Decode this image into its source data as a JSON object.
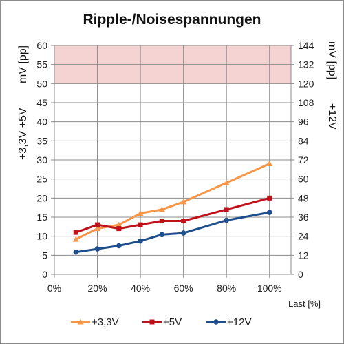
{
  "chart_data": {
    "type": "line",
    "title": "Ripple-/Noisespannungen",
    "x": [
      "10%",
      "20%",
      "30%",
      "40%",
      "50%",
      "60%",
      "80%",
      "100%"
    ],
    "x_values": [
      10,
      20,
      30,
      40,
      50,
      60,
      80,
      100
    ],
    "x_ticks": [
      "0%",
      "20%",
      "40%",
      "60%",
      "80%",
      "100%"
    ],
    "xlim": [
      0,
      110
    ],
    "xlabel": "Last [%]",
    "ylabel_left": [
      "+3,3V +5V",
      "mV [pp]"
    ],
    "ylim_left": [
      0,
      60
    ],
    "yticks_left": [
      0,
      5,
      10,
      15,
      20,
      25,
      30,
      35,
      40,
      45,
      50,
      55,
      60
    ],
    "ylabel_right": [
      "+12V",
      "mV [pp]"
    ],
    "ylim_right": [
      0,
      144
    ],
    "yticks_right": [
      0,
      12,
      24,
      36,
      48,
      60,
      72,
      84,
      96,
      108,
      120,
      132,
      144
    ],
    "limit_band_left": [
      50,
      60
    ],
    "limit_band_color": "#f5d3d3",
    "grid": true,
    "legend_position": "bottom",
    "series": [
      {
        "name": "+3,3V",
        "axis": "left",
        "color": "#f79646",
        "marker": "triangle",
        "values": [
          9.2,
          12,
          13,
          16,
          17,
          19,
          24,
          29
        ]
      },
      {
        "name": "+5V",
        "axis": "left",
        "color": "#c0101a",
        "marker": "square",
        "values": [
          11,
          13,
          12,
          13,
          14,
          14,
          17,
          20
        ]
      },
      {
        "name": "+12V",
        "axis": "right",
        "color": "#1f4e8c",
        "marker": "circle",
        "values": [
          14,
          16,
          18,
          21,
          25,
          26,
          34,
          39
        ]
      }
    ]
  }
}
